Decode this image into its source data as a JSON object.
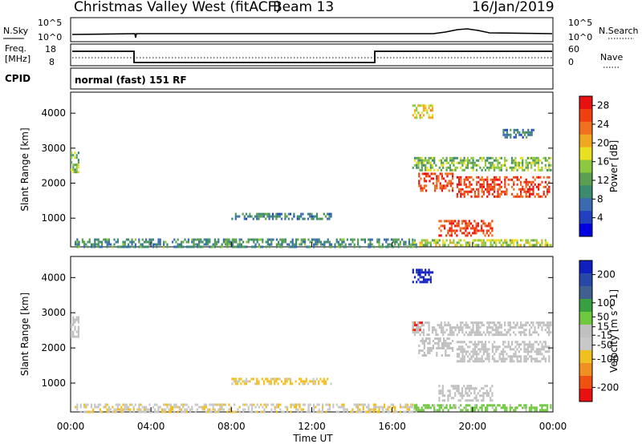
{
  "header": {
    "station": "Christmas Valley West (fitACF)",
    "beam": "Beam 13",
    "date": "16/Jan/2019"
  },
  "noise_panel": {
    "left_label": "N.Sky",
    "left_ticks": [
      "10^5",
      "10^0"
    ],
    "right_label": "N.Search",
    "right_ticks": [
      "10^5",
      "10^0"
    ]
  },
  "freq_panel": {
    "left_label_1": "Freq.",
    "left_label_2": "[MHz]",
    "left_ticks": [
      "18",
      "8"
    ],
    "right_label": "Nave",
    "right_ticks": [
      "60",
      "0"
    ]
  },
  "cpid": {
    "label": "CPID",
    "mode_text": "normal (fast) 151 RF"
  },
  "colors": {
    "power_scale": [
      "#0000e0",
      "#2040c0",
      "#3a6ab0",
      "#3c8a70",
      "#5aa050",
      "#8cc840",
      "#e8e020",
      "#f0a820",
      "#f07020",
      "#f04010",
      "#e81010"
    ],
    "velocity_scale": [
      "#1020c0",
      "#2848a8",
      "#406090",
      "#38a040",
      "#70c840",
      "#c0c0c0",
      "#c8c8c8",
      "#f0c020",
      "#f09020",
      "#f05010",
      "#e81010"
    ],
    "ground_scatter": "#c0c0c0"
  },
  "chart_data": [
    {
      "type": "heatmap",
      "title": "Power",
      "xlabel": "Time UT",
      "ylabel": "Slant Range [km]",
      "x_ticks": [
        "00:00",
        "04:00",
        "08:00",
        "12:00",
        "16:00",
        "20:00",
        "00:00"
      ],
      "xlim_hours": [
        0,
        24
      ],
      "y_ticks": [
        1000,
        2000,
        3000,
        4000
      ],
      "ylim_km": [
        180,
        4600
      ],
      "colorbar": {
        "label": "Power [dB]",
        "ticks": [
          4,
          8,
          12,
          16,
          20,
          24,
          28
        ],
        "range": [
          0,
          30
        ]
      },
      "regions": [
        {
          "t": [
            0.0,
            0.4
          ],
          "r": [
            2300,
            2900
          ],
          "value": 14
        },
        {
          "t": [
            0.2,
            17.2
          ],
          "r": [
            200,
            420
          ],
          "value": 10
        },
        {
          "t": [
            8.0,
            13.0
          ],
          "r": [
            950,
            1150
          ],
          "value": 9
        },
        {
          "t": [
            17.0,
            18.0
          ],
          "r": [
            3900,
            4250
          ],
          "value": 18
        },
        {
          "t": [
            17.0,
            23.9
          ],
          "r": [
            2400,
            2750
          ],
          "value": 14
        },
        {
          "t": [
            17.3,
            19.0
          ],
          "r": [
            1800,
            2300
          ],
          "value": 26
        },
        {
          "t": [
            19.2,
            23.8
          ],
          "r": [
            1600,
            2200
          ],
          "value": 26
        },
        {
          "t": [
            18.3,
            21.0
          ],
          "r": [
            500,
            950
          ],
          "value": 26
        },
        {
          "t": [
            17.0,
            23.9
          ],
          "r": [
            200,
            400
          ],
          "value": 16
        },
        {
          "t": [
            21.5,
            23.0
          ],
          "r": [
            3300,
            3550
          ],
          "value": 8
        }
      ]
    },
    {
      "type": "heatmap",
      "title": "Velocity",
      "xlabel": "Time UT",
      "ylabel": "Slant Range [km]",
      "x_ticks": [
        "00:00",
        "04:00",
        "08:00",
        "12:00",
        "16:00",
        "20:00",
        "00:00"
      ],
      "xlim_hours": [
        0,
        24
      ],
      "y_ticks": [
        1000,
        2000,
        3000,
        4000
      ],
      "ylim_km": [
        180,
        4600
      ],
      "colorbar": {
        "label": "Velocity [m s^-1]",
        "ticks": [
          200,
          100,
          50,
          15,
          -15,
          -50,
          -100,
          -200
        ],
        "range": [
          -250,
          250
        ]
      },
      "regions": [
        {
          "t": [
            0.0,
            0.4
          ],
          "r": [
            2300,
            2900
          ],
          "value": 0,
          "ground": true
        },
        {
          "t": [
            0.2,
            17.2
          ],
          "r": [
            200,
            420
          ],
          "value": -60
        },
        {
          "t": [
            8.0,
            13.0
          ],
          "r": [
            950,
            1150
          ],
          "value": -80
        },
        {
          "t": [
            17.0,
            18.0
          ],
          "r": [
            3900,
            4250
          ],
          "value": 220
        },
        {
          "t": [
            17.0,
            17.5
          ],
          "r": [
            2500,
            2750
          ],
          "value": -220
        },
        {
          "t": [
            17.0,
            23.9
          ],
          "r": [
            2400,
            2750
          ],
          "value": 0,
          "ground": true
        },
        {
          "t": [
            17.3,
            19.0
          ],
          "r": [
            1800,
            2300
          ],
          "value": 0,
          "ground": true
        },
        {
          "t": [
            19.2,
            23.8
          ],
          "r": [
            1600,
            2200
          ],
          "value": 0,
          "ground": true
        },
        {
          "t": [
            18.3,
            21.0
          ],
          "r": [
            500,
            950
          ],
          "value": 0,
          "ground": true
        },
        {
          "t": [
            17.0,
            23.9
          ],
          "r": [
            200,
            400
          ],
          "value": 40
        }
      ]
    }
  ]
}
